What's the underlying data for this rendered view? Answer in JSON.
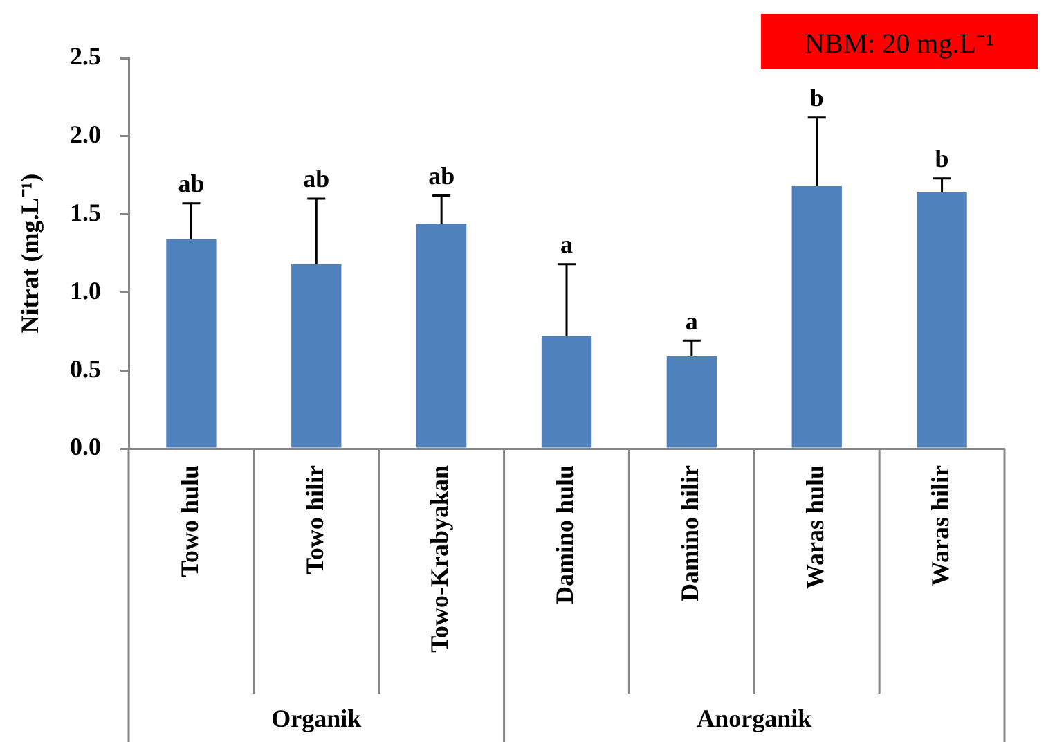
{
  "chart_data": {
    "type": "bar",
    "ylabel": "Nitrat (mg.L⁻¹)",
    "categories": [
      "Towo hulu",
      "Towo hilir",
      "Towo-Krabyakan",
      "Damino hulu",
      "Damino hilir",
      "Waras hulu",
      "Waras hilir"
    ],
    "values": [
      1.34,
      1.18,
      1.44,
      0.72,
      0.59,
      1.68,
      1.64
    ],
    "color": "#4f81bd",
    "value_labels": [
      "ab",
      "ab",
      "ab",
      "a",
      "a",
      "b",
      "b"
    ],
    "errors": [
      [
        1.34,
        1.57
      ],
      [
        1.18,
        1.6
      ],
      [
        1.44,
        1.62
      ],
      [
        0.72,
        1.18
      ],
      [
        0.59,
        0.69
      ],
      [
        1.68,
        2.12
      ],
      [
        1.64,
        1.73
      ]
    ],
    "ylim": [
      0,
      2.5
    ],
    "yticks": [
      {
        "value": 0,
        "label": "0.0"
      },
      0.5,
      {
        "value": 1,
        "label": "1.0"
      },
      1.5,
      {
        "value": 2,
        "label": "2.0"
      },
      2.5
    ],
    "annotations": [
      "NBM: 20 mg.L⁻¹",
      "Organik",
      "Anorganik"
    ]
  }
}
